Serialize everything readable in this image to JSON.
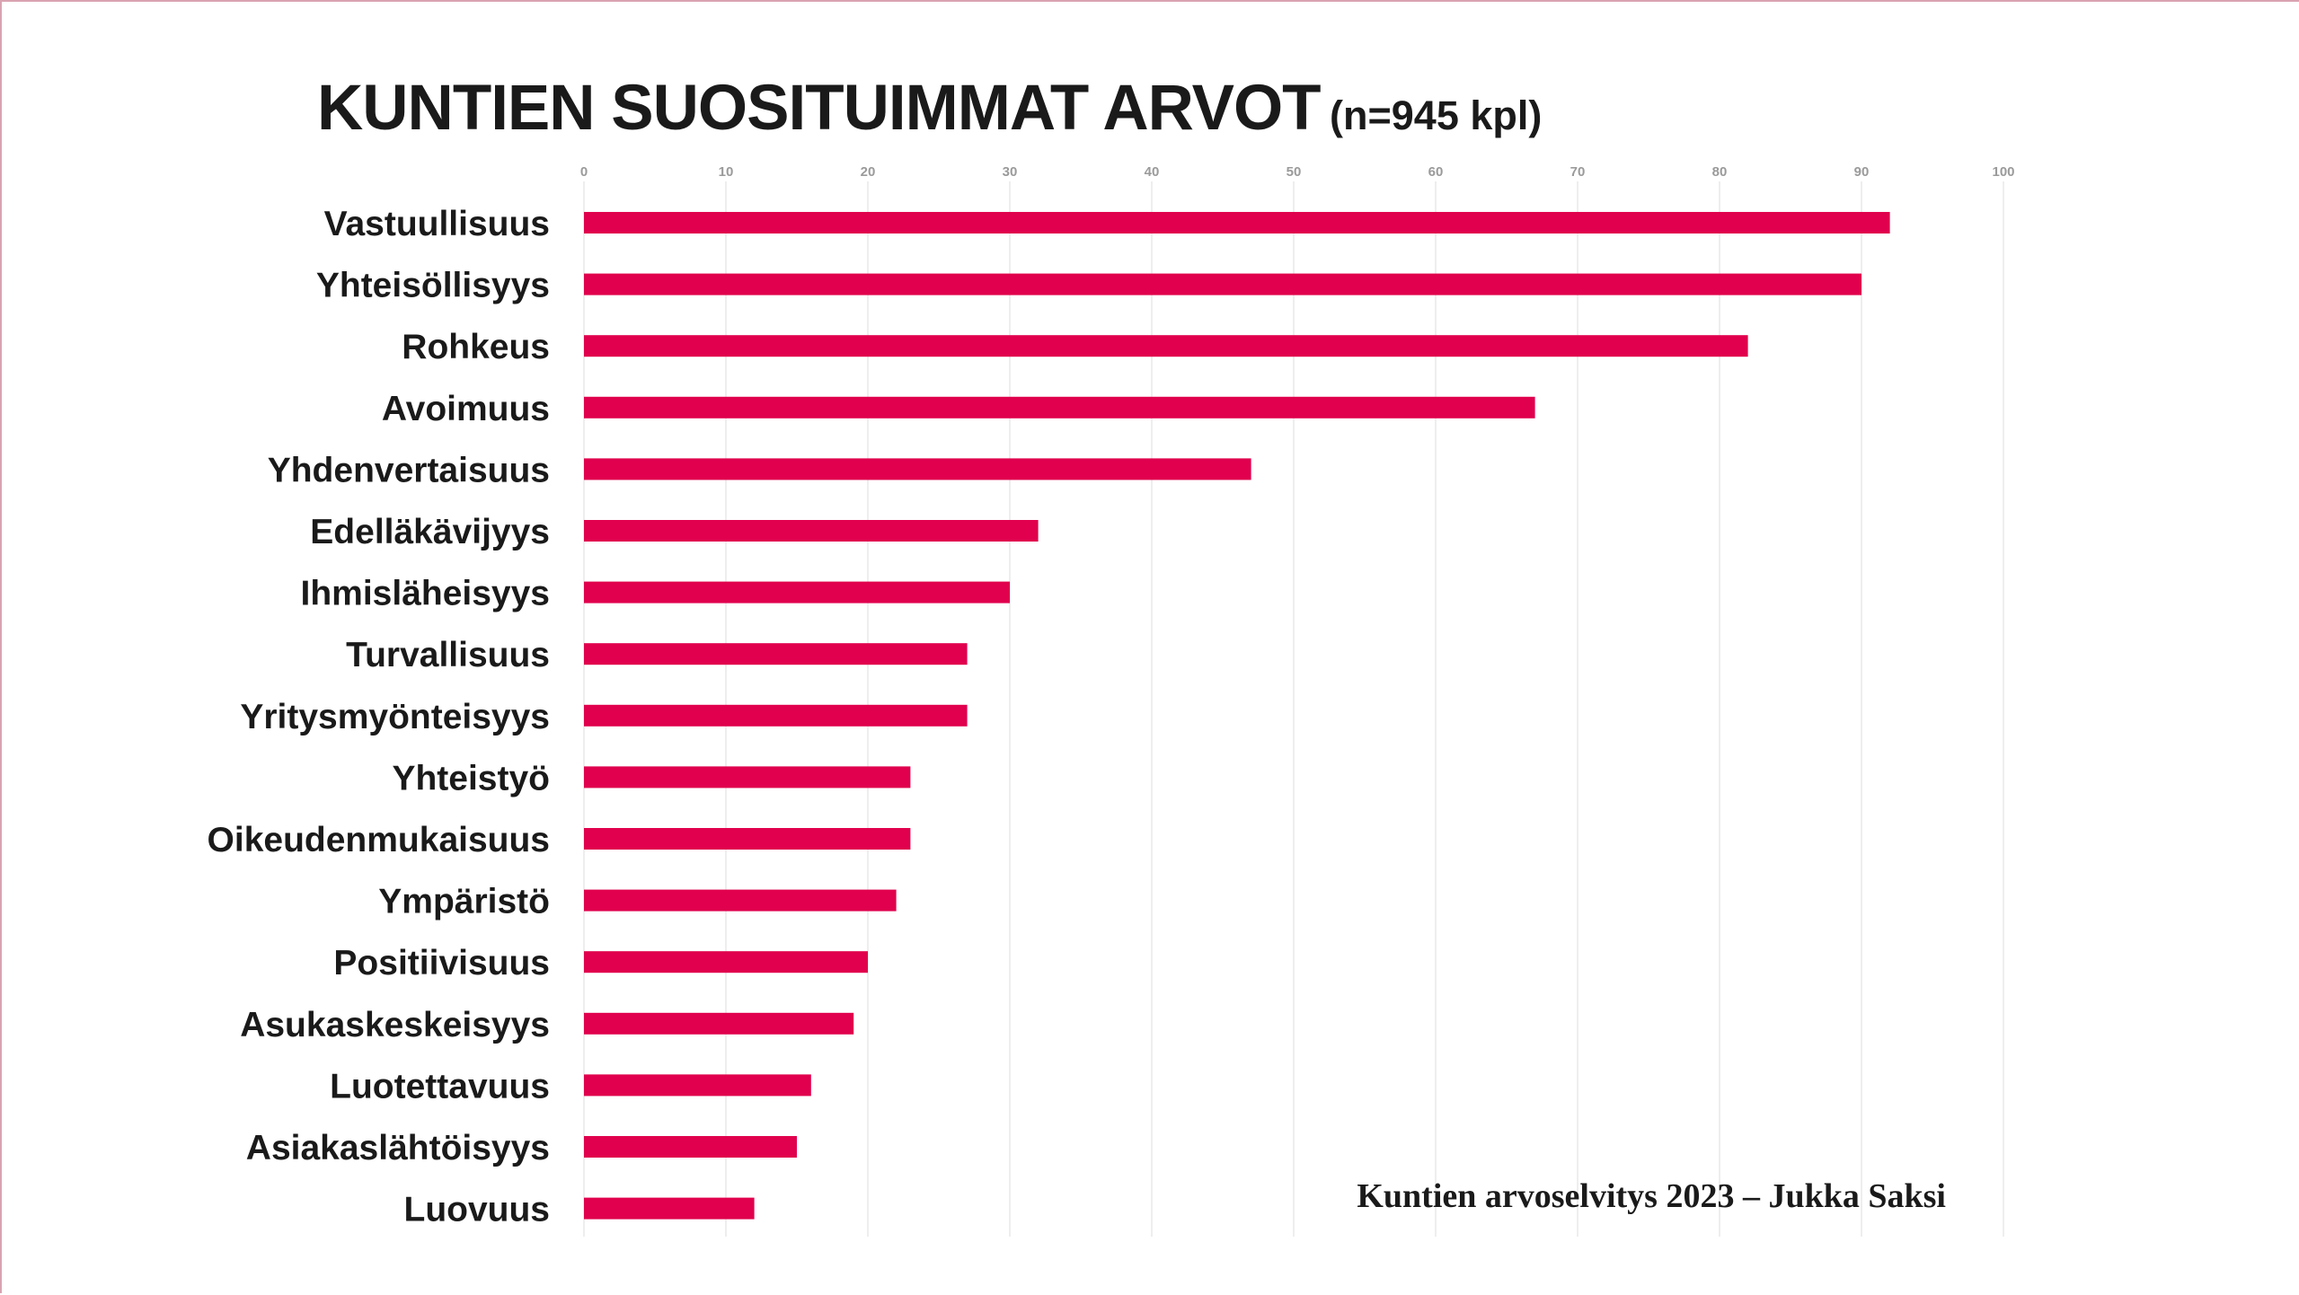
{
  "title": "KUNTIEN SUOSITUIMMAT ARVOT",
  "subtitle": "(n=945 kpl)",
  "source": "Kuntien arvoselvitys 2023 – Jukka Saksi",
  "colors": {
    "bar": "#e0004d",
    "grid": "#e8e8e8",
    "text": "#1a1a1a",
    "tick": "#9a9a9a"
  },
  "chart_data": {
    "type": "bar",
    "orientation": "horizontal",
    "categories": [
      "Vastuullisuus",
      "Yhteisöllisyys",
      "Rohkeus",
      "Avoimuus",
      "Yhdenvertaisuus",
      "Edelläkävijyys",
      "Ihmisläheisyys",
      "Turvallisuus",
      "Yritysmyönteisyys",
      "Yhteistyö",
      "Oikeudenmukaisuus",
      "Ympäristö",
      "Positiivisuus",
      "Asukaskeskeisyys",
      "Luotettavuus",
      "Asiakaslähtöisyys",
      "Luovuus"
    ],
    "values": [
      92,
      90,
      82,
      67,
      47,
      32,
      30,
      27,
      27,
      23,
      23,
      22,
      20,
      19,
      16,
      15,
      12
    ],
    "xlim": [
      0,
      100
    ],
    "xticks": [
      0,
      10,
      20,
      30,
      40,
      50,
      60,
      70,
      80,
      90,
      100
    ],
    "xticks_position": "top",
    "grid": true,
    "legend": false
  }
}
